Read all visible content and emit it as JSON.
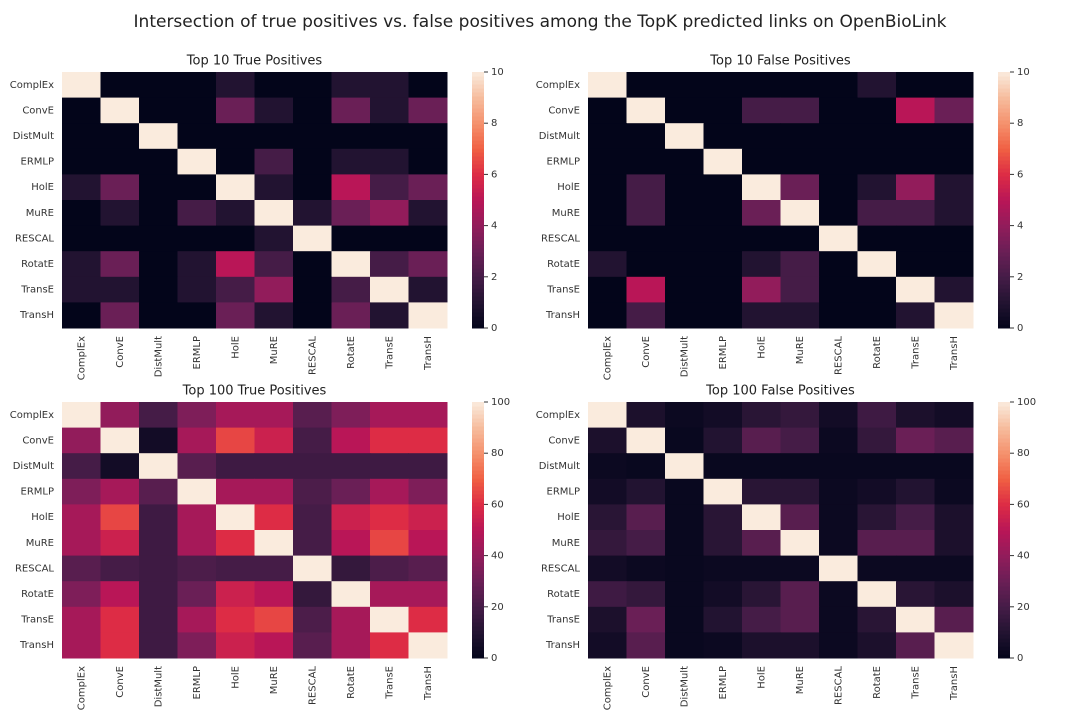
{
  "title": "Intersection of true positives vs. false positives among the TopK predicted links on OpenBioLink",
  "chart_data": [
    {
      "type": "heatmap",
      "title": "Top 10 True Positives",
      "categories": [
        "ComplEx",
        "ConvE",
        "DistMult",
        "ERMLP",
        "HolE",
        "MuRE",
        "RESCAL",
        "RotatE",
        "TransE",
        "TransH"
      ],
      "values": [
        [
          10,
          0,
          0,
          0,
          1,
          0,
          0,
          1,
          1,
          0
        ],
        [
          0,
          10,
          0,
          0,
          3,
          1,
          0,
          3,
          1,
          3
        ],
        [
          0,
          0,
          10,
          0,
          0,
          0,
          0,
          0,
          0,
          0
        ],
        [
          0,
          0,
          0,
          10,
          0,
          2,
          0,
          1,
          1,
          0
        ],
        [
          1,
          3,
          0,
          0,
          10,
          1,
          0,
          5,
          2,
          3
        ],
        [
          0,
          1,
          0,
          2,
          1,
          10,
          1,
          3,
          4,
          1
        ],
        [
          0,
          0,
          0,
          0,
          0,
          1,
          10,
          0,
          0,
          0
        ],
        [
          1,
          3,
          0,
          1,
          5,
          2,
          0,
          10,
          2,
          3
        ],
        [
          1,
          1,
          0,
          1,
          2,
          4,
          0,
          2,
          10,
          1
        ],
        [
          0,
          3,
          0,
          0,
          3,
          1,
          0,
          3,
          1,
          10
        ]
      ],
      "clim": [
        0,
        10
      ],
      "cticks": [
        0,
        2,
        4,
        6,
        8,
        10
      ],
      "colormap": [
        "#03051a",
        "#221331",
        "#451c47",
        "#6a1f56",
        "#921c5b",
        "#b91657",
        "#dd2c45",
        "#f06043",
        "#f5916d",
        "#f6bc9d",
        "#faebdd"
      ]
    },
    {
      "type": "heatmap",
      "title": "Top 10 False Positives",
      "categories": [
        "ComplEx",
        "ConvE",
        "DistMult",
        "ERMLP",
        "HolE",
        "MuRE",
        "RESCAL",
        "RotatE",
        "TransE",
        "TransH"
      ],
      "values": [
        [
          10,
          0,
          0,
          0,
          0,
          0,
          0,
          1,
          0,
          0
        ],
        [
          0,
          10,
          0,
          0,
          2,
          2,
          0,
          0,
          5,
          3
        ],
        [
          0,
          0,
          10,
          0,
          0,
          0,
          0,
          0,
          0,
          0
        ],
        [
          0,
          0,
          0,
          10,
          0,
          0,
          0,
          0,
          0,
          0
        ],
        [
          0,
          2,
          0,
          0,
          10,
          3,
          0,
          1,
          4,
          1
        ],
        [
          0,
          2,
          0,
          0,
          3,
          10,
          0,
          2,
          2,
          1
        ],
        [
          0,
          0,
          0,
          0,
          0,
          0,
          10,
          0,
          0,
          0
        ],
        [
          1,
          0,
          0,
          0,
          1,
          2,
          0,
          10,
          0,
          0
        ],
        [
          0,
          5,
          0,
          0,
          4,
          2,
          0,
          0,
          10,
          1
        ],
        [
          0,
          2,
          0,
          0,
          1,
          1,
          0,
          0,
          1,
          10
        ]
      ],
      "clim": [
        0,
        10
      ],
      "cticks": [
        0,
        2,
        4,
        6,
        8,
        10
      ],
      "colormap": [
        "#03051a",
        "#221331",
        "#451c47",
        "#6a1f56",
        "#921c5b",
        "#b91657",
        "#dd2c45",
        "#f06043",
        "#f5916d",
        "#f6bc9d",
        "#faebdd"
      ]
    },
    {
      "type": "heatmap",
      "title": "Top 100 True Positives",
      "categories": [
        "ComplEx",
        "ConvE",
        "DistMult",
        "ERMLP",
        "HolE",
        "MuRE",
        "RESCAL",
        "RotatE",
        "TransE",
        "TransH"
      ],
      "values": [
        [
          100,
          40,
          20,
          35,
          45,
          45,
          25,
          35,
          45,
          45
        ],
        [
          40,
          100,
          5,
          45,
          65,
          55,
          20,
          50,
          60,
          60
        ],
        [
          20,
          5,
          100,
          25,
          18,
          18,
          18,
          18,
          18,
          18
        ],
        [
          35,
          45,
          25,
          100,
          45,
          45,
          22,
          30,
          45,
          35
        ],
        [
          45,
          65,
          18,
          45,
          100,
          60,
          20,
          55,
          60,
          55
        ],
        [
          45,
          55,
          18,
          45,
          60,
          100,
          20,
          50,
          65,
          50
        ],
        [
          25,
          20,
          18,
          22,
          20,
          20,
          100,
          15,
          22,
          25
        ],
        [
          35,
          50,
          18,
          30,
          55,
          50,
          15,
          100,
          45,
          45
        ],
        [
          45,
          60,
          18,
          45,
          60,
          65,
          22,
          45,
          100,
          60
        ],
        [
          45,
          60,
          18,
          35,
          55,
          50,
          25,
          45,
          60,
          100
        ]
      ],
      "clim": [
        0,
        100
      ],
      "cticks": [
        0,
        20,
        40,
        60,
        80,
        100
      ],
      "colormap": [
        "#03051a",
        "#221331",
        "#451c47",
        "#6a1f56",
        "#921c5b",
        "#b91657",
        "#dd2c45",
        "#f06043",
        "#f5916d",
        "#f6bc9d",
        "#faebdd"
      ]
    },
    {
      "type": "heatmap",
      "title": "Top 100 False Positives",
      "categories": [
        "ComplEx",
        "ConvE",
        "DistMult",
        "ERMLP",
        "HolE",
        "MuRE",
        "RESCAL",
        "RotatE",
        "TransE",
        "TransH"
      ],
      "values": [
        [
          100,
          8,
          3,
          5,
          12,
          15,
          5,
          18,
          8,
          5
        ],
        [
          8,
          100,
          2,
          10,
          25,
          20,
          3,
          15,
          30,
          25
        ],
        [
          3,
          2,
          100,
          2,
          2,
          2,
          2,
          2,
          2,
          2
        ],
        [
          5,
          10,
          2,
          100,
          12,
          12,
          3,
          5,
          10,
          3
        ],
        [
          12,
          25,
          2,
          12,
          100,
          25,
          3,
          12,
          20,
          8
        ],
        [
          15,
          20,
          2,
          12,
          25,
          100,
          3,
          25,
          25,
          8
        ],
        [
          5,
          3,
          2,
          3,
          3,
          3,
          100,
          3,
          3,
          3
        ],
        [
          18,
          15,
          2,
          5,
          12,
          25,
          3,
          100,
          12,
          8
        ],
        [
          8,
          30,
          2,
          10,
          20,
          25,
          3,
          12,
          100,
          25
        ],
        [
          5,
          25,
          2,
          3,
          8,
          8,
          3,
          8,
          25,
          100
        ]
      ],
      "clim": [
        0,
        100
      ],
      "cticks": [
        0,
        20,
        40,
        60,
        80,
        100
      ],
      "colormap": [
        "#03051a",
        "#221331",
        "#451c47",
        "#6a1f56",
        "#921c5b",
        "#b91657",
        "#dd2c45",
        "#f06043",
        "#f5916d",
        "#f6bc9d",
        "#faebdd"
      ]
    }
  ]
}
